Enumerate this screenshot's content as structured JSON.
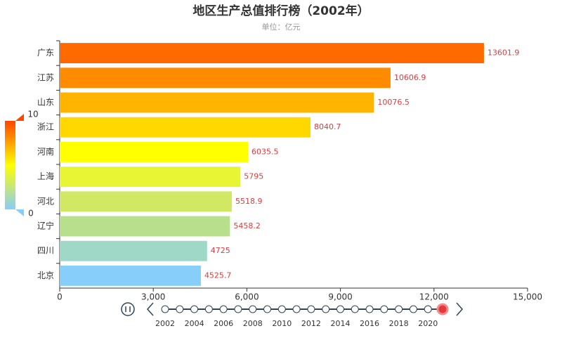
{
  "chart_data": {
    "type": "bar",
    "orientation": "horizontal",
    "title": "地区生产总值排行榜（2002年）",
    "subtitle": "单位：亿元",
    "categories": [
      "广东",
      "江苏",
      "山东",
      "浙江",
      "河南",
      "上海",
      "河北",
      "辽宁",
      "四川",
      "北京"
    ],
    "values": [
      13601.9,
      10606.9,
      10076.5,
      8040.7,
      6035.5,
      5795,
      5518.9,
      5458.2,
      4725,
      4525.7
    ],
    "colors": [
      "#ff6a00",
      "#ff8c00",
      "#ffb400",
      "#ffd800",
      "#ffff00",
      "#e8f534",
      "#d0e864",
      "#b8e08c",
      "#a0d8c8",
      "#87cefa"
    ],
    "xlim": [
      0,
      15000
    ],
    "xticks": [
      0,
      {
        "value": 3000,
        "label": "3,000"
      },
      {
        "value": 6000,
        "label": "6,000"
      },
      {
        "value": 9000,
        "label": "9,000"
      },
      {
        "value": 12000,
        "label": "12,000"
      },
      {
        "value": 15000,
        "label": "15,000"
      }
    ],
    "visual_map": {
      "range": [
        0,
        10
      ],
      "colors": [
        "#87cefa",
        "#ffff00",
        "#ff4500"
      ]
    },
    "timeline": {
      "labels": [
        "2002",
        "2004",
        "2006",
        "2008",
        "2010",
        "2012",
        "2014",
        "2016",
        "2018",
        "2020"
      ]
    }
  }
}
